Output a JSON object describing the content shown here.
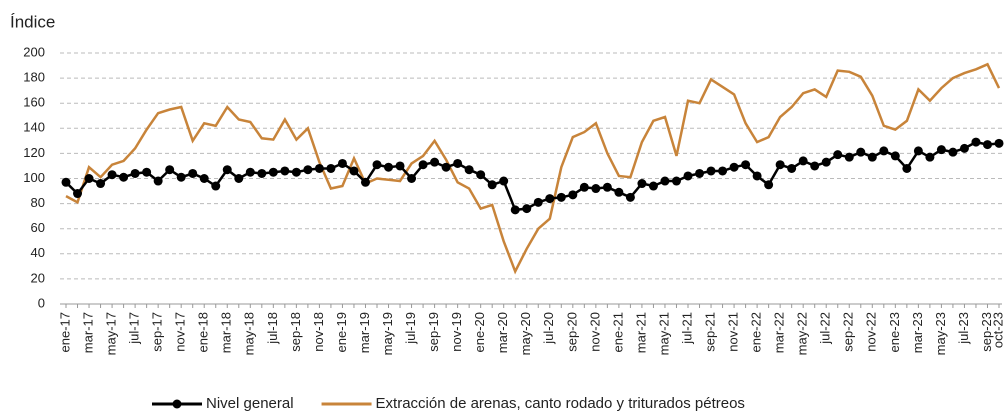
{
  "chart_data": {
    "type": "line",
    "y_label": "Índice",
    "categories": [
      "ene-17",
      null,
      "mar-17",
      null,
      "may-17",
      null,
      "jul-17",
      null,
      "sep-17",
      null,
      "nov-17",
      null,
      "ene-18",
      null,
      "mar-18",
      null,
      "may-18",
      null,
      "jul-18",
      null,
      "sep-18",
      null,
      "nov-18",
      null,
      "ene-19",
      null,
      "mar-19",
      null,
      "may-19",
      null,
      "jul-19",
      null,
      "sep-19",
      null,
      "nov-19",
      null,
      "ene-20",
      null,
      "mar-20",
      null,
      "may-20",
      null,
      "jul-20",
      null,
      "sep-20",
      null,
      "nov-20",
      null,
      "ene-21",
      null,
      "mar-21",
      null,
      "may-21",
      null,
      "jul-21",
      null,
      "sep-21",
      null,
      "nov-21",
      null,
      "ene-22",
      null,
      "mar-22",
      null,
      "may-22",
      null,
      "jul-22",
      null,
      "sep-22",
      null,
      "nov-22",
      null,
      "ene-23",
      null,
      "mar-23",
      null,
      "may-23",
      null,
      "jul-23",
      null,
      "sep-23",
      "oct-23"
    ],
    "series": [
      {
        "name": "Nivel general",
        "color": "#000000",
        "markers": true,
        "values": [
          97,
          88,
          100,
          96,
          103,
          101,
          104,
          105,
          98,
          107,
          101,
          104,
          100,
          94,
          107,
          100,
          105,
          104,
          105,
          106,
          105,
          107,
          108,
          108,
          112,
          106,
          97,
          111,
          109,
          110,
          100,
          111,
          113,
          109,
          112,
          107,
          103,
          95,
          98,
          75,
          76,
          81,
          84,
          85,
          87,
          93,
          92,
          93,
          89,
          85,
          96,
          94,
          98,
          98,
          102,
          104,
          106,
          106,
          109,
          111,
          102,
          95,
          111,
          108,
          114,
          110,
          113,
          119,
          117,
          121,
          117,
          122,
          118,
          108,
          122,
          117,
          123,
          121,
          124,
          129,
          127,
          128
        ]
      },
      {
        "name": "Extracción de arenas, canto rodado y triturados pétreos",
        "color": "#c8843a",
        "markers": false,
        "values": [
          86,
          81,
          109,
          101,
          111,
          114,
          124,
          139,
          152,
          155,
          157,
          130,
          144,
          142,
          157,
          147,
          145,
          132,
          131,
          147,
          131,
          140,
          113,
          92,
          94,
          116,
          96,
          100,
          99,
          98,
          112,
          118,
          130,
          115,
          97,
          92,
          76,
          79,
          50,
          26,
          44,
          60,
          68,
          109,
          133,
          137,
          144,
          120,
          102,
          101,
          129,
          146,
          149,
          118,
          162,
          160,
          179,
          173,
          167,
          144,
          129,
          133,
          149,
          157,
          168,
          171,
          165,
          186,
          185,
          181,
          166,
          142,
          139,
          146,
          171,
          162,
          172,
          180,
          184,
          187,
          191,
          172
        ]
      }
    ],
    "ylim": [
      0,
      200
    ],
    "yticks": [
      0,
      20,
      40,
      60,
      80,
      100,
      120,
      140,
      160,
      180,
      200
    ],
    "grid": true,
    "legend": "bottom"
  }
}
